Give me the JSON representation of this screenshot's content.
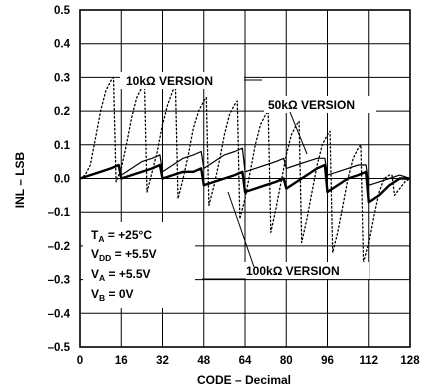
{
  "chart_data": {
    "type": "line",
    "title": "",
    "xlabel": "CODE – Decimal",
    "ylabel": "INL – LSB",
    "xlim": [
      0,
      128
    ],
    "ylim": [
      -0.5,
      0.5
    ],
    "x_ticks": [
      "0",
      "16",
      "32",
      "48",
      "64",
      "80",
      "96",
      "112",
      "128"
    ],
    "y_ticks": [
      "0.5",
      "0.4",
      "0.3",
      "0.2",
      "0.1",
      "0.0",
      "–0.1",
      "–0.2",
      "–0.3",
      "–0.4",
      "–0.5"
    ],
    "grid": true,
    "series": [
      {
        "name": "10kΩ VERSION",
        "style": "dotted",
        "points": [
          [
            0,
            0.0
          ],
          [
            2,
            0.01
          ],
          [
            4,
            0.04
          ],
          [
            6,
            0.12
          ],
          [
            8,
            0.2
          ],
          [
            10,
            0.26
          ],
          [
            12,
            0.29
          ],
          [
            13,
            0.3
          ],
          [
            14,
            -0.01
          ],
          [
            16,
            0.03
          ],
          [
            18,
            0.1
          ],
          [
            20,
            0.18
          ],
          [
            22,
            0.24
          ],
          [
            24,
            0.27
          ],
          [
            25,
            0.28
          ],
          [
            26,
            -0.04
          ],
          [
            28,
            0.02
          ],
          [
            30,
            0.08
          ],
          [
            32,
            0.16
          ],
          [
            34,
            0.22
          ],
          [
            36,
            0.26
          ],
          [
            37,
            0.28
          ],
          [
            38,
            -0.06
          ],
          [
            40,
            0.0
          ],
          [
            42,
            0.07
          ],
          [
            44,
            0.15
          ],
          [
            46,
            0.2
          ],
          [
            48,
            0.23
          ],
          [
            49,
            0.24
          ],
          [
            50,
            -0.08
          ],
          [
            52,
            -0.02
          ],
          [
            54,
            0.05
          ],
          [
            56,
            0.13
          ],
          [
            58,
            0.19
          ],
          [
            60,
            0.22
          ],
          [
            61,
            0.23
          ],
          [
            62,
            -0.12
          ],
          [
            64,
            -0.06
          ],
          [
            66,
            0.02
          ],
          [
            68,
            0.1
          ],
          [
            70,
            0.16
          ],
          [
            72,
            0.19
          ],
          [
            73,
            0.2
          ],
          [
            74,
            -0.16
          ],
          [
            76,
            -0.09
          ],
          [
            78,
            -0.01
          ],
          [
            80,
            0.07
          ],
          [
            82,
            0.13
          ],
          [
            84,
            0.16
          ],
          [
            85,
            0.17
          ],
          [
            86,
            -0.19
          ],
          [
            88,
            -0.12
          ],
          [
            90,
            -0.04
          ],
          [
            92,
            0.04
          ],
          [
            94,
            0.1
          ],
          [
            96,
            0.13
          ],
          [
            97,
            0.14
          ],
          [
            98,
            -0.22
          ],
          [
            100,
            -0.16
          ],
          [
            102,
            -0.08
          ],
          [
            104,
            0.0
          ],
          [
            106,
            0.06
          ],
          [
            108,
            0.09
          ],
          [
            109,
            0.1
          ],
          [
            110,
            -0.25
          ],
          [
            112,
            -0.19
          ],
          [
            114,
            -0.11
          ],
          [
            116,
            -0.04
          ],
          [
            118,
            0.0
          ],
          [
            120,
            0.01
          ],
          [
            121,
            0.01
          ],
          [
            122,
            -0.05
          ],
          [
            124,
            -0.03
          ],
          [
            126,
            -0.01
          ],
          [
            128,
            0.0
          ]
        ]
      },
      {
        "name": "50kΩ VERSION",
        "style": "thin",
        "points": [
          [
            0,
            0.0
          ],
          [
            4,
            0.01
          ],
          [
            8,
            0.02
          ],
          [
            12,
            0.03
          ],
          [
            15,
            0.04
          ],
          [
            16,
            0.01
          ],
          [
            20,
            0.03
          ],
          [
            24,
            0.05
          ],
          [
            28,
            0.06
          ],
          [
            31,
            0.07
          ],
          [
            32,
            0.02
          ],
          [
            36,
            0.04
          ],
          [
            40,
            0.06
          ],
          [
            44,
            0.07
          ],
          [
            47,
            0.08
          ],
          [
            48,
            0.03
          ],
          [
            52,
            0.05
          ],
          [
            56,
            0.07
          ],
          [
            60,
            0.08
          ],
          [
            63,
            0.09
          ],
          [
            64,
            0.02
          ],
          [
            68,
            0.03
          ],
          [
            72,
            0.04
          ],
          [
            76,
            0.05
          ],
          [
            79,
            0.06
          ],
          [
            80,
            0.03
          ],
          [
            84,
            0.04
          ],
          [
            88,
            0.05
          ],
          [
            92,
            0.06
          ],
          [
            95,
            0.06
          ],
          [
            96,
            0.01
          ],
          [
            100,
            0.02
          ],
          [
            104,
            0.03
          ],
          [
            108,
            0.04
          ],
          [
            111,
            0.04
          ],
          [
            112,
            -0.02
          ],
          [
            116,
            -0.01
          ],
          [
            120,
            0.0
          ],
          [
            124,
            0.01
          ],
          [
            128,
            0.0
          ]
        ]
      },
      {
        "name": "100kΩ VERSION",
        "style": "thick",
        "points": [
          [
            0,
            0.0
          ],
          [
            4,
            0.01
          ],
          [
            8,
            0.02
          ],
          [
            12,
            0.03
          ],
          [
            15,
            0.04
          ],
          [
            16,
            0.0
          ],
          [
            20,
            0.01
          ],
          [
            24,
            0.02
          ],
          [
            28,
            0.03
          ],
          [
            31,
            0.04
          ],
          [
            32,
            0.0
          ],
          [
            36,
            0.01
          ],
          [
            40,
            0.02
          ],
          [
            44,
            0.02
          ],
          [
            47,
            0.03
          ],
          [
            48,
            -0.02
          ],
          [
            52,
            -0.01
          ],
          [
            56,
            0.0
          ],
          [
            60,
            0.01
          ],
          [
            63,
            0.02
          ],
          [
            64,
            -0.04
          ],
          [
            68,
            -0.03
          ],
          [
            72,
            -0.02
          ],
          [
            76,
            -0.01
          ],
          [
            79,
            0.0
          ],
          [
            80,
            -0.03
          ],
          [
            84,
            -0.01
          ],
          [
            88,
            0.01
          ],
          [
            92,
            0.03
          ],
          [
            95,
            0.04
          ],
          [
            96,
            -0.04
          ],
          [
            100,
            -0.02
          ],
          [
            104,
            0.0
          ],
          [
            108,
            0.01
          ],
          [
            111,
            0.02
          ],
          [
            112,
            -0.07
          ],
          [
            116,
            -0.05
          ],
          [
            120,
            -0.02
          ],
          [
            124,
            0.0
          ],
          [
            128,
            0.0
          ]
        ]
      }
    ],
    "annotations": {
      "label_10k": "10kΩ VERSION",
      "label_50k": "50kΩ VERSION",
      "label_100k": "100kΩ VERSION"
    },
    "conditions": {
      "ta_main": "T",
      "ta_sub": "A",
      "ta_rest": " = +25°C",
      "vdd_main": "V",
      "vdd_sub": "DD",
      "vdd_rest": " = +5.5V",
      "va_main": "V",
      "va_sub": "A",
      "va_rest": " = +5.5V",
      "vb_main": "V",
      "vb_sub": "B",
      "vb_rest": " = 0V"
    }
  }
}
